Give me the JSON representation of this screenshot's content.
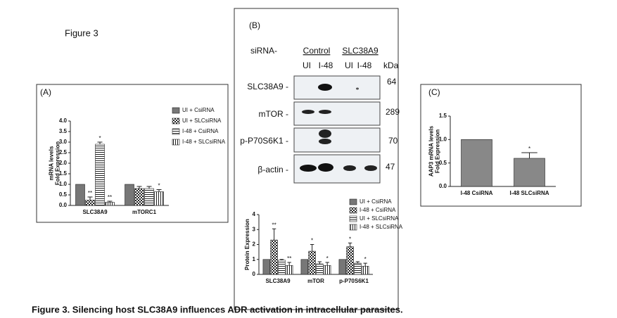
{
  "figure_label": "Figure 3",
  "caption": "Figure 3. Silencing host SLC38A9 influences ADR activation in intracellular parasites.",
  "panels": [
    "(A)",
    "(B)",
    "(C)"
  ],
  "blot": {
    "sirna": "siRNA-",
    "groups": [
      "Control",
      "SLC38A9"
    ],
    "lanes": [
      "UI",
      "I-48",
      "UI",
      "I-48"
    ],
    "unit": "kDa",
    "rows": [
      {
        "label": "SLC38A9 -",
        "kda": "64"
      },
      {
        "label": "mTOR -",
        "kda": "289"
      },
      {
        "label": "p-P70S6K1 -",
        "kda": "70"
      },
      {
        "label": "β-actin -",
        "kda": "47"
      }
    ]
  },
  "chart_data": [
    {
      "type": "bar",
      "ylabel": [
        "mRNA levels",
        "Fold Expression"
      ],
      "categories": [
        "SLC38A9",
        "mTORC1"
      ],
      "ylim": [
        0,
        4
      ],
      "yticks": [
        {
          "value": 0,
          "label": "0.0"
        },
        {
          "value": 0.5,
          "label": "0.5"
        },
        {
          "value": 1,
          "label": "1.0"
        },
        {
          "value": 1.5,
          "label": "1.5"
        },
        {
          "value": 2,
          "label": "2.0"
        },
        {
          "value": 2.5,
          "label": "2.5"
        },
        {
          "value": 3,
          "label": "3.0"
        },
        {
          "value": 3.5,
          "label": "3.5"
        },
        {
          "value": 4,
          "label": "4.0"
        }
      ],
      "series": [
        {
          "name": "UI + CsiRNA",
          "color": "#777",
          "hatch": "solid",
          "values": [
            1.0,
            1.0
          ],
          "errors": [
            0,
            0
          ],
          "significance": [
            null,
            null
          ]
        },
        {
          "name": "UI + SLCsiRNA",
          "color": "#333",
          "hatch": "checker",
          "values": [
            0.25,
            0.8
          ],
          "errors": [
            0.15,
            0.1
          ],
          "significance": [
            "**",
            null
          ]
        },
        {
          "name": "I-48 + CsiRNA",
          "color": "#333",
          "hatch": "horizontal",
          "values": [
            2.9,
            0.8
          ],
          "errors": [
            0.1,
            0.1
          ],
          "significance": [
            "*",
            null
          ]
        },
        {
          "name": "I-48 + SLCsiRNA",
          "color": "#333",
          "hatch": "vertical",
          "values": [
            0.15,
            0.65
          ],
          "errors": [
            0.05,
            0.1
          ],
          "significance": [
            "**",
            "*"
          ]
        }
      ]
    },
    {
      "type": "bar",
      "ylabel": [
        "Protein Expression"
      ],
      "categories": [
        "SLC38A9",
        "mTOR",
        "p-P70S6K1"
      ],
      "ylim": [
        0,
        4
      ],
      "yticks": [
        0,
        1,
        2,
        3,
        4
      ],
      "series": [
        {
          "name": "UI + CsiRNA",
          "color": "#777",
          "hatch": "solid",
          "values": [
            1.0,
            1.0,
            1.0
          ],
          "errors": [
            0,
            0,
            0
          ],
          "significance": [
            null,
            null,
            null
          ]
        },
        {
          "name": "I-48 + CsiRNA",
          "color": "#333",
          "hatch": "checker",
          "values": [
            2.3,
            1.55,
            1.85
          ],
          "errors": [
            0.75,
            0.45,
            0.25
          ],
          "significance": [
            "**",
            "*",
            "*"
          ]
        },
        {
          "name": "UI + SLCsiRNA",
          "color": "#333",
          "hatch": "horizontal",
          "values": [
            0.95,
            0.7,
            0.75
          ],
          "errors": [
            0.05,
            0.15,
            0.1
          ],
          "significance": [
            null,
            null,
            null
          ]
        },
        {
          "name": "I-48 + SLCsiRNA",
          "color": "#333",
          "hatch": "vertical",
          "values": [
            0.6,
            0.6,
            0.55
          ],
          "errors": [
            0.2,
            0.2,
            0.2
          ],
          "significance": [
            "**",
            "*",
            "*"
          ]
        }
      ]
    },
    {
      "type": "bar",
      "ylabel": [
        "AAP3 mRNA levels",
        "Fold Expression"
      ],
      "categories": [
        "I-48 CsiRNA",
        "I-48 SLCsiRNA"
      ],
      "ylim": [
        0,
        1.5
      ],
      "yticks": [
        {
          "value": 0,
          "label": "0.0"
        },
        {
          "value": 0.5,
          "label": "0.5"
        },
        {
          "value": 1,
          "label": "1.0"
        },
        {
          "value": 1.5,
          "label": "1.5"
        }
      ],
      "color": "#888",
      "values": [
        1.0,
        0.6
      ],
      "errors": [
        0,
        0.12
      ],
      "significance": [
        null,
        "*"
      ]
    }
  ]
}
